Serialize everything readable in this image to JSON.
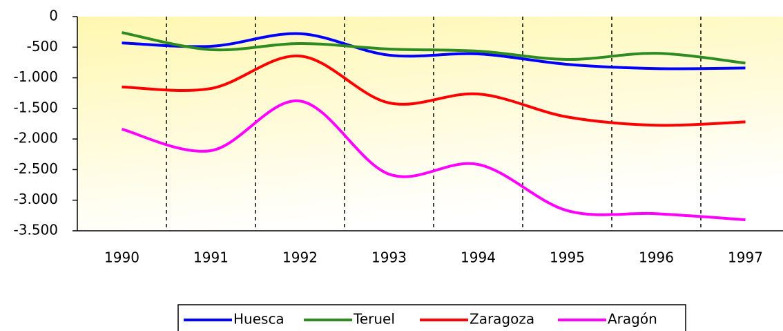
{
  "chart_data": {
    "type": "line",
    "categories": [
      "1990",
      "1991",
      "1992",
      "1993",
      "1994",
      "1995",
      "1996",
      "1997"
    ],
    "series": [
      {
        "name": "Huesca",
        "color": "#0000ff",
        "values": [
          -430,
          -485,
          -280,
          -630,
          -610,
          -780,
          -850,
          -840
        ]
      },
      {
        "name": "Teruel",
        "color": "#2e8b22",
        "values": [
          -260,
          -540,
          -440,
          -530,
          -565,
          -700,
          -600,
          -760
        ]
      },
      {
        "name": "Zaragoza",
        "color": "#ff0000",
        "values": [
          -1150,
          -1175,
          -645,
          -1410,
          -1265,
          -1640,
          -1775,
          -1720
        ]
      },
      {
        "name": "Aragón",
        "color": "#ff00ff",
        "values": [
          -1840,
          -2190,
          -1380,
          -2575,
          -2415,
          -3170,
          -3220,
          -3320
        ]
      }
    ],
    "ylim": [
      -3500,
      0
    ],
    "yticks": [
      0,
      -500,
      {
        "value": -1000,
        "label": "-1.000"
      },
      {
        "value": -1500,
        "label": "-1.500"
      },
      {
        "value": -2000,
        "label": "-2.000"
      },
      {
        "value": -2500,
        "label": "-2.500"
      },
      {
        "value": -3000,
        "label": "-3.000"
      },
      {
        "value": -3500,
        "label": "-3.500"
      }
    ],
    "legend": "bottom"
  }
}
